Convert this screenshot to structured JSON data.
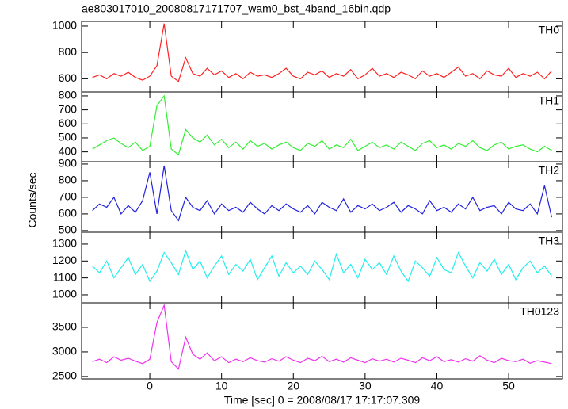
{
  "chart_data": [
    {
      "type": "line",
      "title": "ae803017010_20080817171707_wam0_bst_4band_16bin.qdp",
      "name": "TH0",
      "color": "#ff2020",
      "x": [
        -8,
        -7,
        -6,
        -5,
        -4,
        -3,
        -2,
        -1,
        0,
        1,
        2,
        3,
        4,
        5,
        6,
        7,
        8,
        9,
        10,
        11,
        12,
        13,
        14,
        15,
        16,
        17,
        18,
        19,
        20,
        21,
        22,
        23,
        24,
        25,
        26,
        27,
        28,
        29,
        30,
        31,
        32,
        33,
        34,
        35,
        36,
        37,
        38,
        39,
        40,
        41,
        42,
        43,
        44,
        45,
        46,
        47,
        48,
        49,
        50,
        51,
        52,
        53,
        54,
        55,
        56
      ],
      "values": [
        610,
        630,
        600,
        640,
        620,
        650,
        610,
        590,
        620,
        700,
        1020,
        620,
        580,
        760,
        640,
        620,
        680,
        630,
        660,
        610,
        640,
        600,
        650,
        620,
        630,
        610,
        640,
        680,
        620,
        600,
        650,
        630,
        660,
        610,
        640,
        620,
        670,
        600,
        630,
        680,
        620,
        640,
        610,
        650,
        630,
        600,
        660,
        620,
        640,
        610,
        650,
        690,
        620,
        640,
        600,
        660,
        630,
        620,
        680,
        610,
        640,
        620,
        650,
        600,
        660
      ],
      "xlim": [
        -9.5,
        57.5
      ],
      "xticks": [
        0,
        10,
        20,
        30,
        40,
        50
      ],
      "ylim": [
        500,
        1036
      ],
      "yticks": [
        600,
        800,
        1000
      ]
    },
    {
      "type": "line",
      "name": "TH1",
      "color": "#33ee33",
      "x": [
        -8,
        -7,
        -6,
        -5,
        -4,
        -3,
        -2,
        -1,
        0,
        1,
        2,
        3,
        4,
        5,
        6,
        7,
        8,
        9,
        10,
        11,
        12,
        13,
        14,
        15,
        16,
        17,
        18,
        19,
        20,
        21,
        22,
        23,
        24,
        25,
        26,
        27,
        28,
        29,
        30,
        31,
        32,
        33,
        34,
        35,
        36,
        37,
        38,
        39,
        40,
        41,
        42,
        43,
        44,
        45,
        46,
        47,
        48,
        49,
        50,
        51,
        52,
        53,
        54,
        55,
        56
      ],
      "values": [
        420,
        450,
        480,
        500,
        460,
        430,
        470,
        410,
        440,
        730,
        800,
        420,
        380,
        560,
        500,
        470,
        520,
        450,
        490,
        430,
        470,
        420,
        480,
        440,
        460,
        420,
        450,
        470,
        430,
        410,
        460,
        440,
        480,
        420,
        450,
        430,
        490,
        410,
        440,
        470,
        430,
        450,
        420,
        470,
        440,
        410,
        460,
        480,
        430,
        450,
        420,
        460,
        440,
        480,
        430,
        410,
        450,
        470,
        420,
        440,
        450,
        420,
        400,
        440,
        410
      ],
      "xlim": [
        -9.5,
        57.5
      ],
      "xticks": [
        0,
        10,
        20,
        30,
        40,
        50
      ],
      "ylim": [
        330,
        828
      ],
      "yticks": [
        400,
        500,
        600,
        700,
        800
      ]
    },
    {
      "type": "line",
      "name": "TH2",
      "color": "#2222dd",
      "y_label": "Counts/sec",
      "x": [
        -8,
        -7,
        -6,
        -5,
        -4,
        -3,
        -2,
        -1,
        0,
        1,
        2,
        3,
        4,
        5,
        6,
        7,
        8,
        9,
        10,
        11,
        12,
        13,
        14,
        15,
        16,
        17,
        18,
        19,
        20,
        21,
        22,
        23,
        24,
        25,
        26,
        27,
        28,
        29,
        30,
        31,
        32,
        33,
        34,
        35,
        36,
        37,
        38,
        39,
        40,
        41,
        42,
        43,
        44,
        45,
        46,
        47,
        48,
        49,
        50,
        51,
        52,
        53,
        54,
        55,
        56
      ],
      "values": [
        620,
        660,
        640,
        700,
        600,
        650,
        610,
        680,
        850,
        600,
        890,
        620,
        560,
        700,
        640,
        620,
        680,
        600,
        660,
        620,
        640,
        610,
        670,
        630,
        600,
        650,
        620,
        660,
        630,
        610,
        650,
        600,
        670,
        640,
        620,
        690,
        610,
        650,
        630,
        660,
        620,
        640,
        670,
        610,
        650,
        630,
        600,
        680,
        620,
        640,
        610,
        660,
        630,
        700,
        620,
        640,
        650,
        600,
        670,
        630,
        620,
        660,
        600,
        770,
        580
      ],
      "xlim": [
        -9.5,
        57.5
      ],
      "xticks": [
        0,
        10,
        20,
        30,
        40,
        50
      ],
      "ylim": [
        490,
        914
      ],
      "yticks": [
        500,
        600,
        700,
        800,
        900
      ]
    },
    {
      "type": "line",
      "name": "TH3",
      "color": "#22eeee",
      "x": [
        -8,
        -7,
        -6,
        -5,
        -4,
        -3,
        -2,
        -1,
        0,
        1,
        2,
        3,
        4,
        5,
        6,
        7,
        8,
        9,
        10,
        11,
        12,
        13,
        14,
        15,
        16,
        17,
        18,
        19,
        20,
        21,
        22,
        23,
        24,
        25,
        26,
        27,
        28,
        29,
        30,
        31,
        32,
        33,
        34,
        35,
        36,
        37,
        38,
        39,
        40,
        41,
        42,
        43,
        44,
        45,
        46,
        47,
        48,
        49,
        50,
        51,
        52,
        53,
        54,
        55,
        56
      ],
      "values": [
        1170,
        1130,
        1200,
        1100,
        1160,
        1220,
        1120,
        1180,
        1080,
        1140,
        1250,
        1190,
        1120,
        1260,
        1150,
        1200,
        1100,
        1170,
        1230,
        1120,
        1180,
        1140,
        1210,
        1090,
        1160,
        1230,
        1110,
        1190,
        1130,
        1170,
        1120,
        1200,
        1150,
        1090,
        1240,
        1130,
        1180,
        1100,
        1210,
        1150,
        1190,
        1120,
        1230,
        1140,
        1080,
        1200,
        1160,
        1110,
        1220,
        1150,
        1130,
        1250,
        1170,
        1100,
        1190,
        1140,
        1210,
        1120,
        1180,
        1090,
        1160,
        1200,
        1130,
        1170,
        1110
      ],
      "xlim": [
        -9.5,
        57.5
      ],
      "xticks": [
        0,
        10,
        20,
        30,
        40,
        50
      ],
      "ylim": [
        953,
        1370
      ],
      "yticks": [
        1000,
        1100,
        1200,
        1300
      ]
    },
    {
      "type": "line",
      "name": "TH0123",
      "color": "#ee33ee",
      "x_label": "Time [sec] 0 = 2008/08/17 17:17:07.309",
      "x": [
        -8,
        -7,
        -6,
        -5,
        -4,
        -3,
        -2,
        -1,
        0,
        1,
        2,
        3,
        4,
        5,
        6,
        7,
        8,
        9,
        10,
        11,
        12,
        13,
        14,
        15,
        16,
        17,
        18,
        19,
        20,
        21,
        22,
        23,
        24,
        25,
        26,
        27,
        28,
        29,
        30,
        31,
        32,
        33,
        34,
        35,
        36,
        37,
        38,
        39,
        40,
        41,
        42,
        43,
        44,
        45,
        46,
        47,
        48,
        49,
        50,
        51,
        52,
        53,
        54,
        55,
        56
      ],
      "values": [
        2800,
        2850,
        2780,
        2900,
        2830,
        2870,
        2810,
        2760,
        2850,
        3600,
        3950,
        2800,
        2650,
        3300,
        2950,
        2850,
        2980,
        2820,
        2900,
        2780,
        2850,
        2800,
        2880,
        2820,
        2790,
        2860,
        2810,
        2900,
        2830,
        2780,
        2870,
        2820,
        2910,
        2800,
        2850,
        2790,
        2880,
        2830,
        2780,
        2860,
        2810,
        2850,
        2790,
        2870,
        2830,
        2780,
        2880,
        2820,
        2900,
        2800,
        2840,
        2790,
        2860,
        2810,
        2920,
        2830,
        2780,
        2870,
        2820,
        2800,
        2850,
        2770,
        2820,
        2790,
        2760
      ],
      "xlim": [
        -9.5,
        57.5
      ],
      "xticks": [
        0,
        10,
        20,
        30,
        40,
        50
      ],
      "ylim": [
        2450,
        4000
      ],
      "yticks": [
        2500,
        3000,
        3500
      ]
    }
  ]
}
